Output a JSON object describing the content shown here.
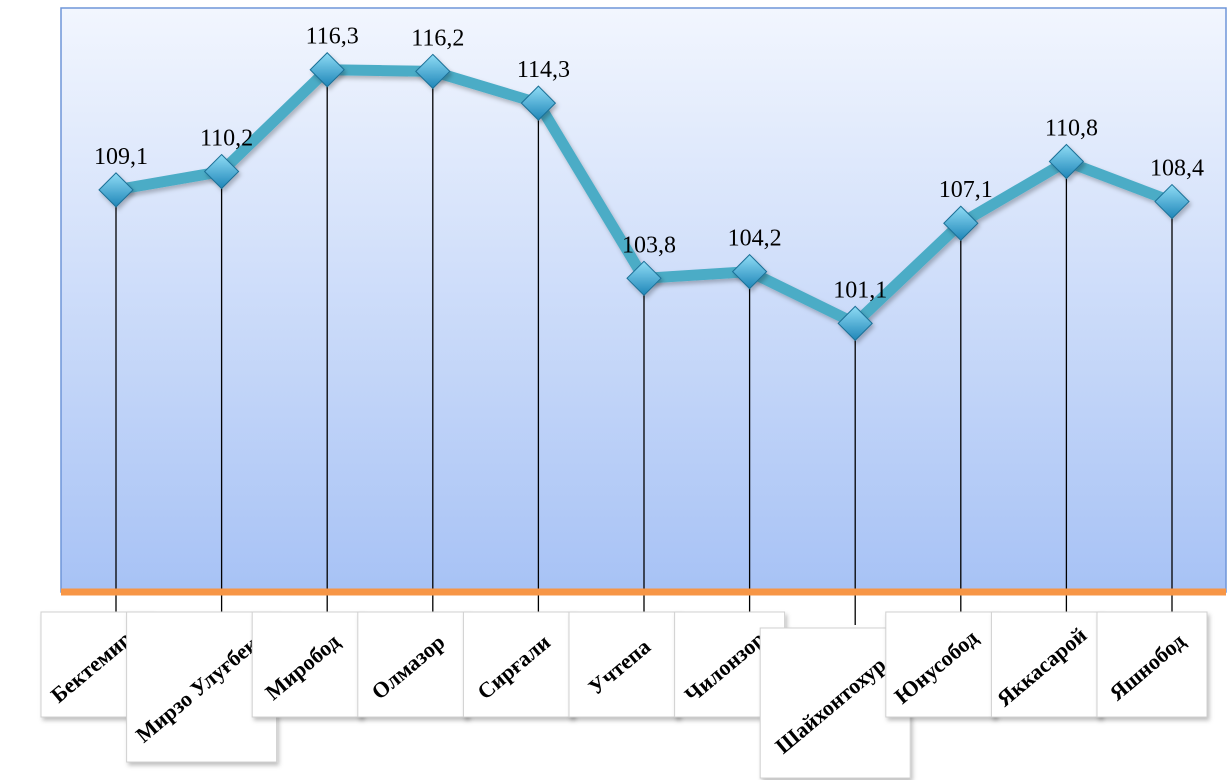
{
  "chart_data": {
    "type": "line",
    "categories": [
      "Бектемир",
      "Мирзо Улуғбек",
      "Миробод",
      "Олмазор",
      "Сирғали",
      "Учтепа",
      "Чилонзор",
      "Шайхонтохур",
      "Юнусобод",
      "Яккасарой",
      "Яшнобод"
    ],
    "values": [
      109.1,
      110.2,
      116.3,
      116.2,
      114.3,
      103.8,
      104.2,
      101.1,
      107.1,
      110.8,
      108.4
    ],
    "value_labels": [
      "109,1",
      "110,2",
      "116,3",
      "116,2",
      "114,3",
      "103,8",
      "104,2",
      "101,1",
      "107,1",
      "110,8",
      "108,4"
    ],
    "title": "",
    "xlabel": "",
    "ylabel": "",
    "ylim": [
      85,
      120
    ],
    "grid": false,
    "legend": "none",
    "drop_lines": true,
    "colors": {
      "line": "#4bacc6",
      "marker": "#3fa9d8",
      "plot_top": "#f2f6fe",
      "plot_bottom": "#a7c2f5",
      "baseline": "#f79646",
      "frame": "#6f95d8"
    }
  }
}
